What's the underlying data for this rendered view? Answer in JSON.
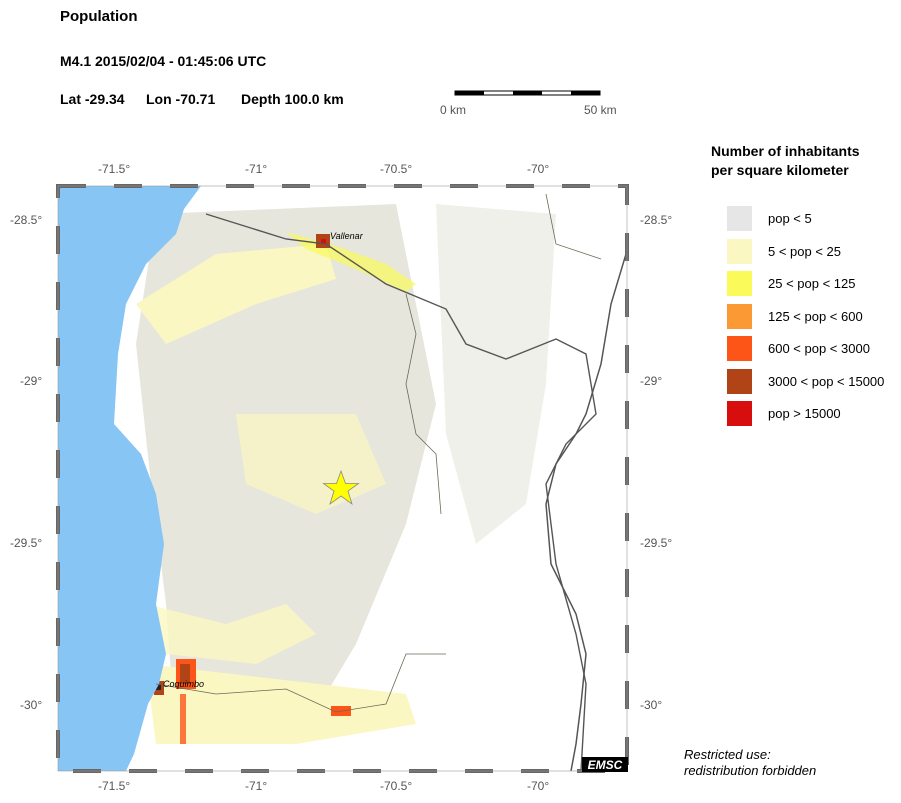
{
  "header": {
    "title": "Population",
    "event": "M4.1  2015/02/04 - 01:45:06 UTC",
    "lat": "Lat -29.34",
    "lon": "Lon -70.71",
    "depth": "Depth 100.0 km"
  },
  "scale_bar": {
    "start_label": "0 km",
    "end_label": "50 km"
  },
  "map": {
    "lon_ticks": [
      "-71.5°",
      "-71°",
      "-70.5°",
      "-70°"
    ],
    "lat_ticks": [
      "-28.5°",
      "-29°",
      "-29.5°",
      "-30°"
    ],
    "cities": [
      "Vallenar",
      "Coquimbo"
    ],
    "epicenter": {
      "lat": -29.34,
      "lon": -70.71,
      "icon": "star-icon",
      "color": "#ffff00"
    },
    "ocean_color": "#87c5f5",
    "land_color": "#e6e6dc",
    "logo": "EMSC"
  },
  "legend": {
    "title_line1": "Number of inhabitants",
    "title_line2": "per square kilometer",
    "items": [
      {
        "label": "pop < 5",
        "color": "#e6e6e6"
      },
      {
        "label": "5 < pop < 25",
        "color": "#fbf7c2"
      },
      {
        "label": "25 < pop < 125",
        "color": "#fafa5a"
      },
      {
        "label": "125 < pop < 600",
        "color": "#fb9a35"
      },
      {
        "label": "600 < pop < 3000",
        "color": "#fd5418"
      },
      {
        "label": "3000 < pop < 15000",
        "color": "#b14416"
      },
      {
        "label": "pop > 15000",
        "color": "#d80d0d"
      }
    ]
  },
  "footer": {
    "line1": "Restricted use:",
    "line2": "redistribution forbidden"
  }
}
